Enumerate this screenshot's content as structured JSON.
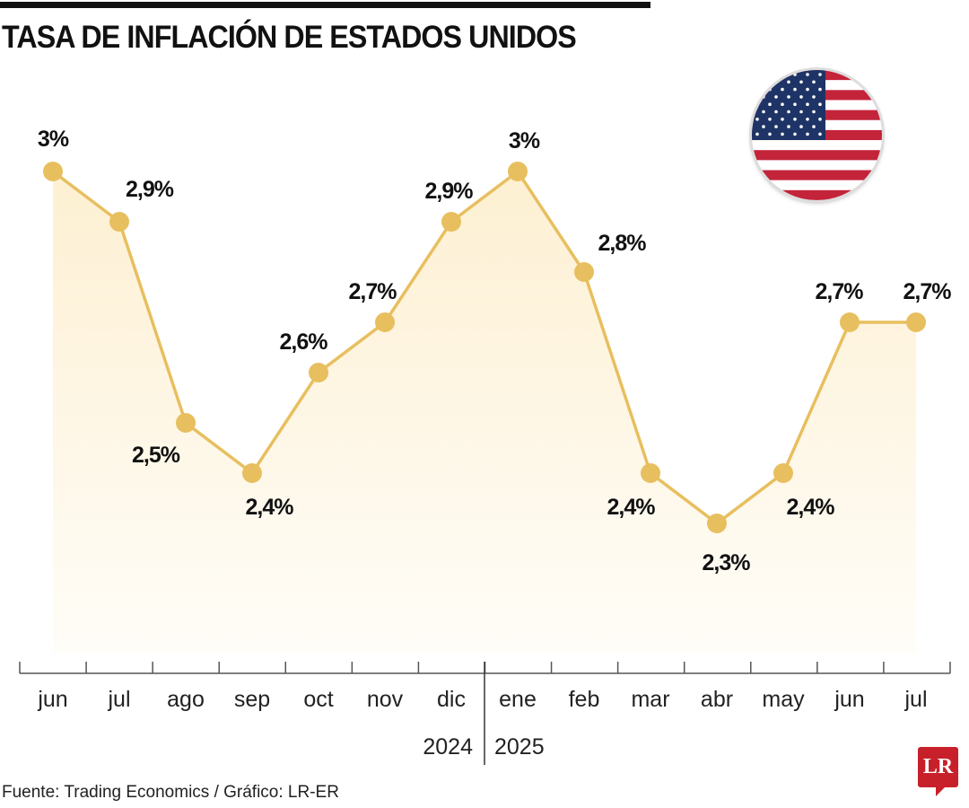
{
  "title": "TASA DE INFLACIÓN DE ESTADOS UNIDOS",
  "source": "Fuente: Trading Economics / Gráfico: LR-ER",
  "logo_text": "LR",
  "flag_icon": "us-flag-icon",
  "colors": {
    "line": "#e8bf5f",
    "marker": "#e8bf5f",
    "fill": "#fdf3dc",
    "logo": "#c8202a"
  },
  "chart_data": {
    "type": "line",
    "title": "TASA DE INFLACIÓN DE ESTADOS UNIDOS",
    "categories": [
      "jun",
      "jul",
      "ago",
      "sep",
      "oct",
      "nov",
      "dic",
      "ene",
      "feb",
      "mar",
      "abr",
      "may",
      "jun",
      "jul"
    ],
    "years": [
      {
        "label": "2024"
      },
      {
        "label": "2025"
      }
    ],
    "values": [
      3.0,
      2.9,
      2.5,
      2.4,
      2.6,
      2.7,
      2.9,
      3.0,
      2.8,
      2.4,
      2.3,
      2.4,
      2.7,
      2.7
    ],
    "data_labels": [
      "3%",
      "2,9%",
      "2,5%",
      "2,4%",
      "2,6%",
      "2,7%",
      "2,9%",
      "3%",
      "2,8%",
      "2,4%",
      "2,3%",
      "2,4%",
      "2,7%",
      "2,7%"
    ],
    "grid": false,
    "area_fill": true
  }
}
